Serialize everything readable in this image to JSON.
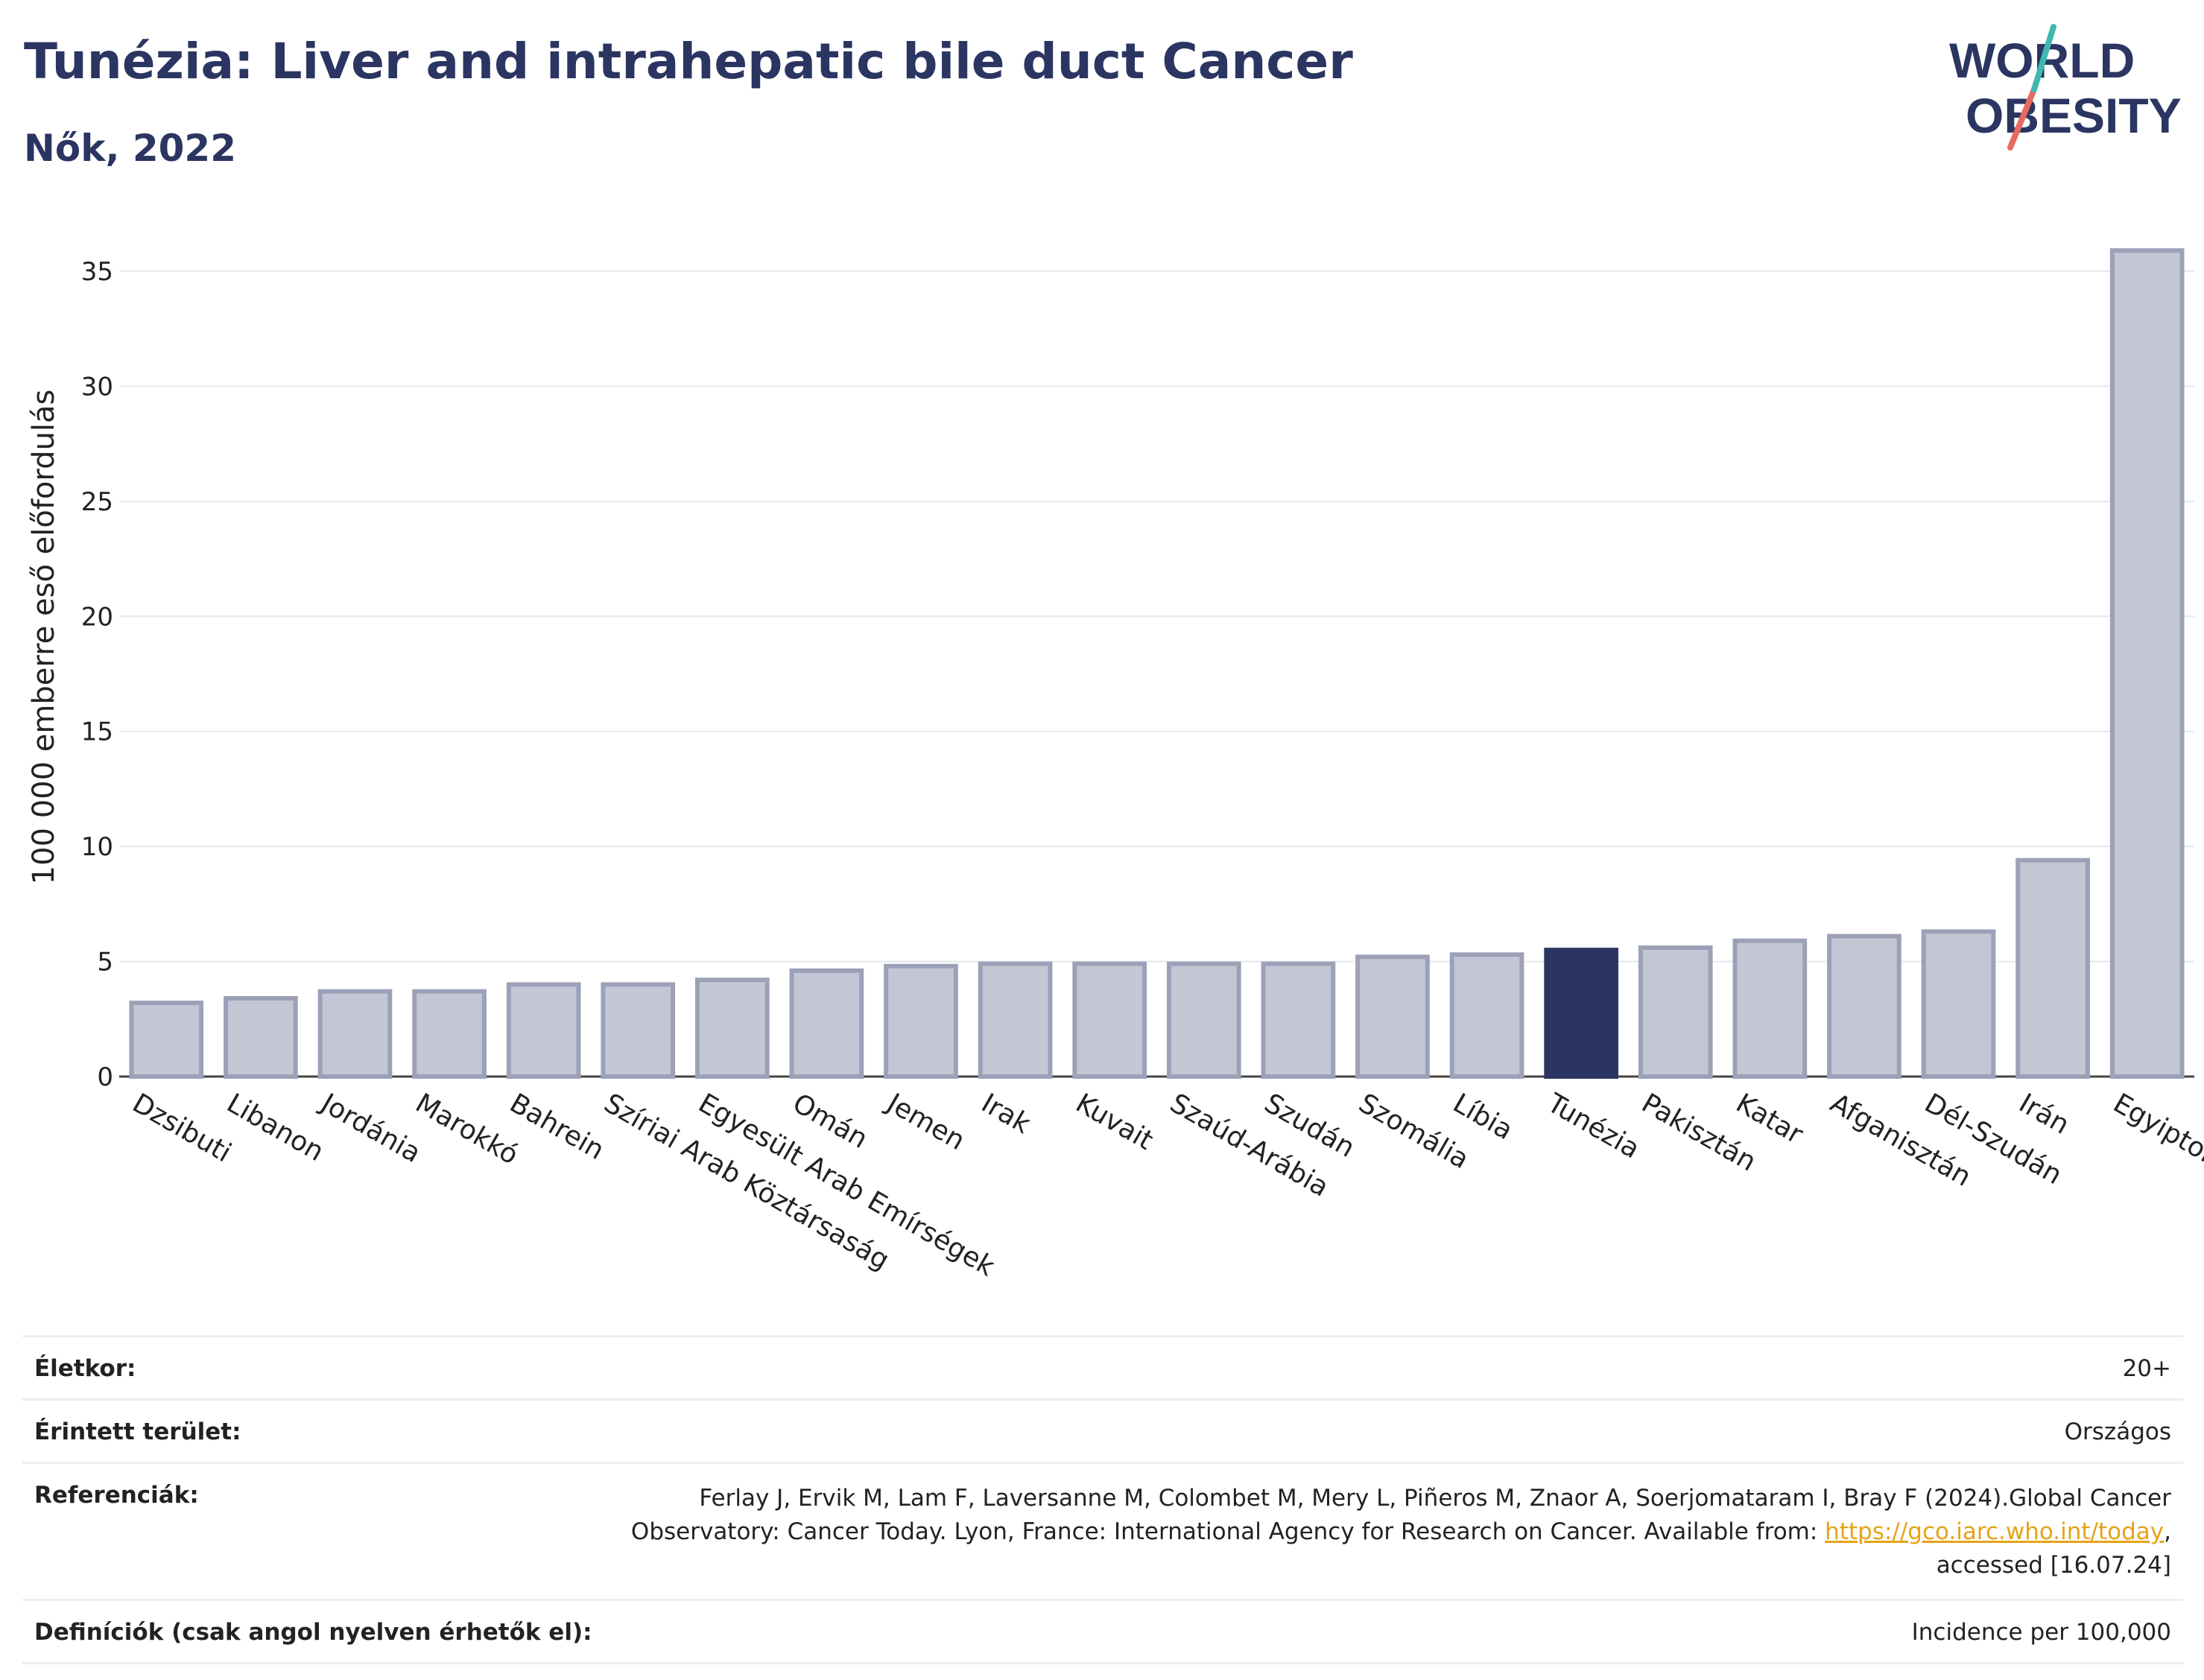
{
  "header": {
    "title": "Tunézia: Liver and intrahepatic bile duct Cancer",
    "subtitle": "Nők, 2022"
  },
  "logo": {
    "line1": "WORLD",
    "line2": "OBESITY"
  },
  "colors": {
    "highlight": "#2b3561",
    "bar": "#c3c6d4",
    "bar_stroke": "#9ca1b8",
    "grid": "#e6e7ee"
  },
  "chart_data": {
    "type": "bar",
    "title": "Tunézia: Liver and intrahepatic bile duct Cancer",
    "subtitle": "Nők, 2022",
    "ylabel": "100 000 emberre eső előfordulás",
    "xlabel": "",
    "ylim": [
      0,
      37
    ],
    "yticks": [
      0,
      5,
      10,
      15,
      20,
      25,
      30,
      35
    ],
    "grid": true,
    "highlight": "Tunézia",
    "categories": [
      "Dzsibuti",
      "Libanon",
      "Jordánia",
      "Marokkó",
      "Bahrein",
      "Szíriai Arab Köztársaság",
      "Egyesült Arab Emírségek",
      "Omán",
      "Jemen",
      "Irak",
      "Kuvait",
      "Szaúd-Arábia",
      "Szudán",
      "Szomália",
      "Líbia",
      "Tunézia",
      "Pakisztán",
      "Katar",
      "Afganisztán",
      "Dél-Szudán",
      "Irán",
      "Egyiptom"
    ],
    "values": [
      3.2,
      3.4,
      3.7,
      3.7,
      4.0,
      4.0,
      4.2,
      4.6,
      4.8,
      4.9,
      4.9,
      4.9,
      4.9,
      5.2,
      5.3,
      5.5,
      5.6,
      5.9,
      6.1,
      6.3,
      9.4,
      35.9
    ]
  },
  "info": {
    "age_label": "Életkor:",
    "age_value": "20+",
    "area_label": "Érintett terület:",
    "area_value": "Országos",
    "ref_label": "Referenciák:",
    "ref_text_1": "Ferlay J, Ervik M, Lam F, Laversanne M, Colombet M, Mery L, Piñeros M, Znaor A, Soerjomataram I, Bray F (2024).Global Cancer Observatory: Cancer Today. Lyon, France: International Agency for Research on Cancer. Available from: ",
    "ref_link": "https://gco.iarc.who.int/today",
    "ref_text_2": ", accessed [16.07.24]",
    "def_label": "Definíciók (csak angol nyelven érhetők el):",
    "def_value": "Incidence per 100,000"
  }
}
